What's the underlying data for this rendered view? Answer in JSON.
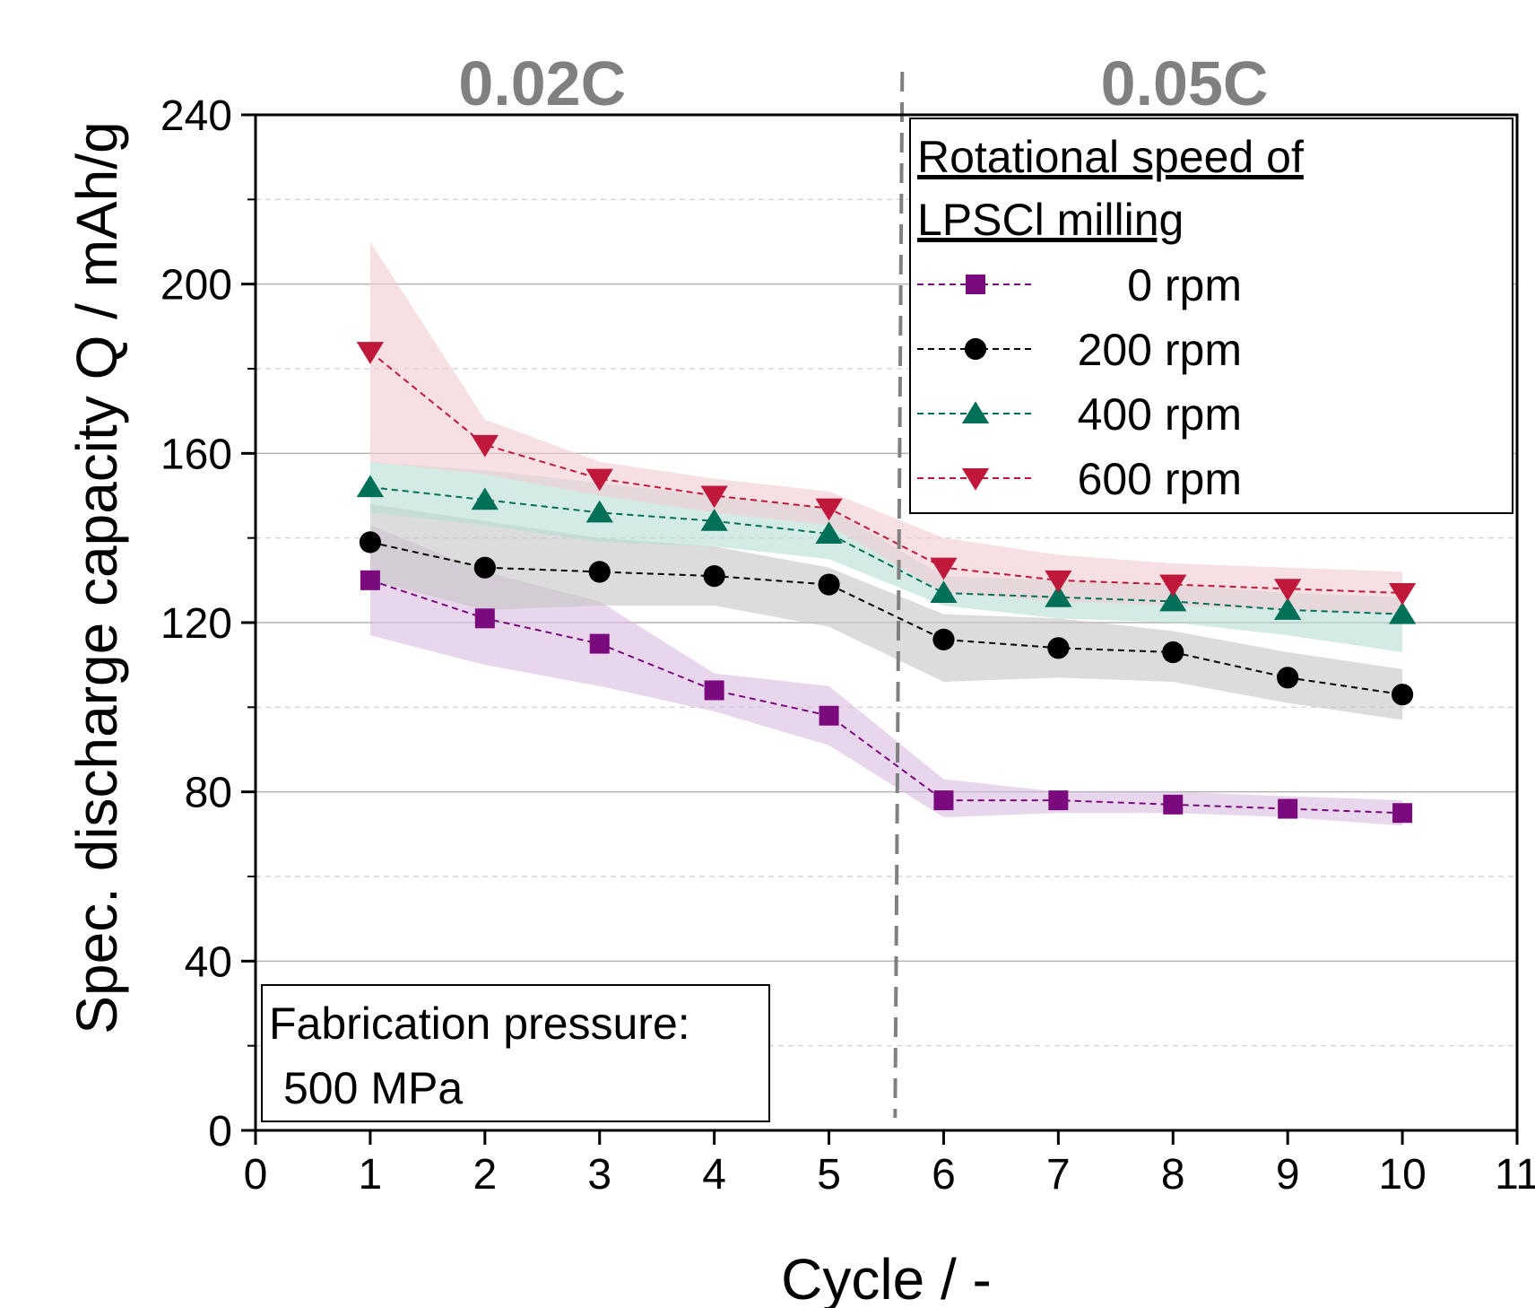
{
  "chart_data": {
    "type": "line",
    "xlabel": "Cycle / -",
    "ylabel": "Spec. discharge capacity Q / mAh/g",
    "xlim": [
      0,
      11
    ],
    "ylim": [
      0,
      240
    ],
    "xticks": [
      0,
      1,
      2,
      3,
      4,
      5,
      6,
      7,
      8,
      9,
      10,
      11
    ],
    "yticks": [
      0,
      40,
      80,
      120,
      160,
      200,
      240
    ],
    "y_minor_ticks": [
      20,
      60,
      100,
      140,
      180,
      220
    ],
    "grid": "horizontal major solid, minor dashed",
    "x": [
      1,
      2,
      3,
      4,
      5,
      6,
      7,
      8,
      9,
      10
    ],
    "series": [
      {
        "name": "0 rpm",
        "marker": "square",
        "color": "#7B0A7E",
        "band_color": "#D9BCE0",
        "values": [
          130,
          121,
          115,
          104,
          98,
          78,
          78,
          77,
          76,
          75
        ],
        "upper": [
          143,
          132,
          125,
          108,
          105,
          83,
          80,
          80,
          79,
          78
        ],
        "lower": [
          117,
          110,
          105,
          99,
          91,
          74,
          75,
          75,
          74,
          72
        ]
      },
      {
        "name": "200 rpm",
        "marker": "circle",
        "color": "#000000",
        "band_color": "#C4C4C4",
        "values": [
          139,
          133,
          132,
          131,
          129,
          116,
          114,
          113,
          107,
          103
        ],
        "upper": [
          148,
          144,
          140,
          138,
          133,
          122,
          121,
          118,
          113,
          109
        ],
        "lower": [
          130,
          123,
          124,
          124,
          119,
          106,
          107,
          106,
          101,
          97
        ]
      },
      {
        "name": "400 rpm",
        "marker": "triangle-up",
        "color": "#007059",
        "band_color": "#B8DDD3",
        "values": [
          152,
          149,
          146,
          144,
          141,
          127,
          126,
          125,
          123,
          122
        ],
        "upper": [
          158,
          156,
          153,
          150,
          147,
          131,
          130,
          129,
          127,
          126
        ],
        "lower": [
          146,
          143,
          139,
          138,
          135,
          124,
          121,
          120,
          117,
          113
        ]
      },
      {
        "name": "600 rpm",
        "marker": "triangle-down",
        "color": "#C0183A",
        "band_color": "#F2CCD2",
        "values": [
          184,
          162,
          154,
          150,
          147,
          133,
          130,
          129,
          128,
          127
        ],
        "upper": [
          210,
          168,
          158,
          154,
          151,
          140,
          136,
          134,
          133,
          132
        ],
        "lower": [
          158,
          155,
          150,
          146,
          143,
          127,
          125,
          124,
          123,
          122
        ]
      }
    ],
    "divider_x": 5.6,
    "rate_labels": [
      {
        "text": "0.02C",
        "x": 2.5
      },
      {
        "text": "0.05C",
        "x": 8.1
      }
    ],
    "legend": {
      "title_line1": "Rotational speed of",
      "title_line2": "LPSCl milling",
      "placement": "top-right"
    },
    "annotation": {
      "line1": "Fabrication pressure:",
      "line2": "500 MPa",
      "placement": "bottom-left"
    }
  }
}
